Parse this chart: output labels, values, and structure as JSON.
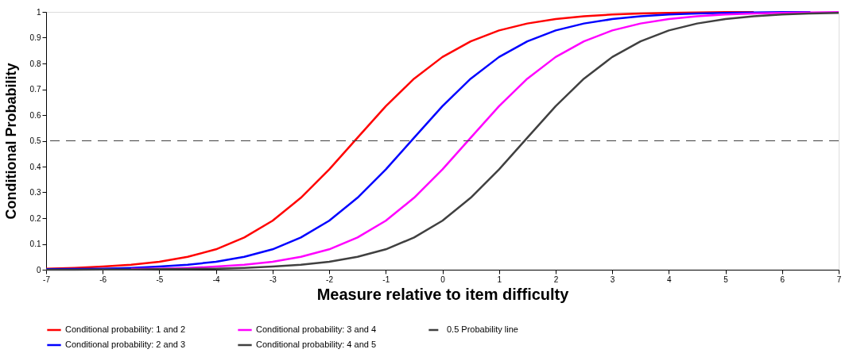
{
  "chart_data": {
    "type": "line",
    "xlabel": "Measure relative to item difficulty",
    "ylabel": "Conditional Probability",
    "x": [
      -7,
      -6.5,
      -6,
      -5.5,
      -5,
      -4.5,
      -4,
      -3.5,
      -3,
      -2.5,
      -2,
      -1.5,
      -1,
      -0.5,
      0,
      0.5,
      1,
      1.5,
      2,
      2.5,
      3,
      3.5,
      4,
      4.5,
      5,
      5.5,
      6,
      6.5,
      7
    ],
    "series": [
      {
        "name": "Conditional probability: 1 and 2",
        "color": "#ff0000",
        "values": [
          0.004,
          0.007,
          0.012,
          0.019,
          0.031,
          0.05,
          0.079,
          0.125,
          0.19,
          0.279,
          0.389,
          0.512,
          0.634,
          0.741,
          0.825,
          0.886,
          0.928,
          0.955,
          0.972,
          0.983,
          0.99,
          0.994,
          0.996,
          0.998,
          0.999,
          0.999,
          null,
          null,
          null
        ]
      },
      {
        "name": "Conditional probability: 2 and 3",
        "color": "#0000ff",
        "values": [
          0.002,
          0.003,
          0.004,
          0.007,
          0.012,
          0.019,
          0.031,
          0.05,
          0.079,
          0.125,
          0.19,
          0.279,
          0.389,
          0.512,
          0.634,
          0.741,
          0.825,
          0.886,
          0.928,
          0.955,
          0.972,
          0.983,
          0.99,
          0.994,
          0.996,
          0.998,
          0.999,
          0.999,
          null
        ]
      },
      {
        "name": "Conditional probability: 3 and 4",
        "color": "#ff00ff",
        "values": [
          null,
          null,
          null,
          0.003,
          0.004,
          0.007,
          0.012,
          0.019,
          0.031,
          0.05,
          0.079,
          0.125,
          0.19,
          0.279,
          0.389,
          0.512,
          0.634,
          0.741,
          0.825,
          0.886,
          0.928,
          0.955,
          0.972,
          0.983,
          0.99,
          0.994,
          0.996,
          0.998,
          0.999
        ]
      },
      {
        "name": "Conditional probability: 4 and 5",
        "color": "#404040",
        "values": [
          0.0,
          0.0,
          0.001,
          0.001,
          0.002,
          0.003,
          0.004,
          0.007,
          0.012,
          0.019,
          0.031,
          0.05,
          0.079,
          0.125,
          0.19,
          0.279,
          0.389,
          0.512,
          0.634,
          0.741,
          0.825,
          0.886,
          0.928,
          0.955,
          0.972,
          0.983,
          0.99,
          0.994,
          0.996
        ]
      }
    ],
    "xlim": [
      -7,
      7
    ],
    "xticks": [
      -7,
      -6,
      -5,
      -4,
      -3,
      -2,
      -1,
      0,
      1,
      2,
      3,
      4,
      5,
      6,
      7
    ],
    "ylim": [
      0,
      1
    ],
    "yticks": [
      0,
      0.1,
      0.2,
      0.3,
      0.4,
      0.5,
      0.6,
      0.7,
      0.8,
      0.9,
      1
    ],
    "ref_lines": [
      {
        "axis": "y",
        "value": 0.5,
        "label": "0.5 Probability line",
        "color": "#404040",
        "line_style": "dashed"
      }
    ],
    "grid": false,
    "legend": "bottom",
    "marker": "none",
    "line_style": "solid"
  }
}
